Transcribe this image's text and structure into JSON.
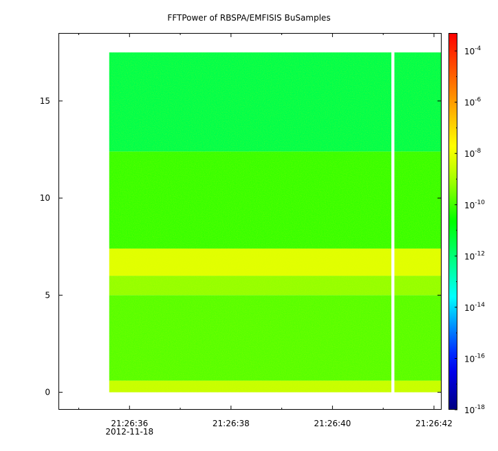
{
  "chart_data": {
    "type": "heatmap",
    "title": "FFTPower of RBSPA/EMFISIS  BuSamples",
    "x_axis": {
      "ticks": [
        "21:26:36",
        "21:26:38",
        "21:26:40",
        "21:26:42"
      ],
      "tick_values_s": [
        0,
        2,
        4,
        6
      ],
      "date_label": "2012-11-18",
      "range_s": [
        -1.4,
        6.15
      ],
      "data_start_s": -0.4,
      "data_end_s": 6.15,
      "data_gap_s": [
        5.16,
        5.22
      ]
    },
    "y_axis": {
      "ticks": [
        "0",
        "5",
        "10",
        "15"
      ],
      "tick_values": [
        0,
        5,
        10,
        15
      ],
      "range": [
        -0.9,
        18.5
      ],
      "data_top": 17.5
    },
    "colorbar": {
      "scale": "log",
      "range_exp": [
        -18,
        -3.3
      ],
      "ticks": [
        {
          "base": "10",
          "exp": "-4",
          "value_exp": -4
        },
        {
          "base": "10",
          "exp": "-6",
          "value_exp": -6
        },
        {
          "base": "10",
          "exp": "-8",
          "value_exp": -8
        },
        {
          "base": "10",
          "exp": "-10",
          "value_exp": -10
        },
        {
          "base": "10",
          "exp": "-12",
          "value_exp": -12
        },
        {
          "base": "10",
          "exp": "-14",
          "value_exp": -14
        },
        {
          "base": "10",
          "exp": "-16",
          "value_exp": -16
        },
        {
          "base": "10",
          "exp": "-18",
          "value_exp": -18
        }
      ]
    },
    "bands": [
      {
        "y_from": 0,
        "y_to": 0.6,
        "log_power": -8.6
      },
      {
        "y_from": 0.6,
        "y_to": 5.0,
        "log_power": -9.8
      },
      {
        "y_from": 5.0,
        "y_to": 6.0,
        "log_power": -9.2
      },
      {
        "y_from": 6.0,
        "y_to": 7.4,
        "log_power": -8.2
      },
      {
        "y_from": 7.4,
        "y_to": 12.4,
        "log_power": -10.1
      },
      {
        "y_from": 12.4,
        "y_to": 17.5,
        "log_power": -11.5
      }
    ]
  }
}
